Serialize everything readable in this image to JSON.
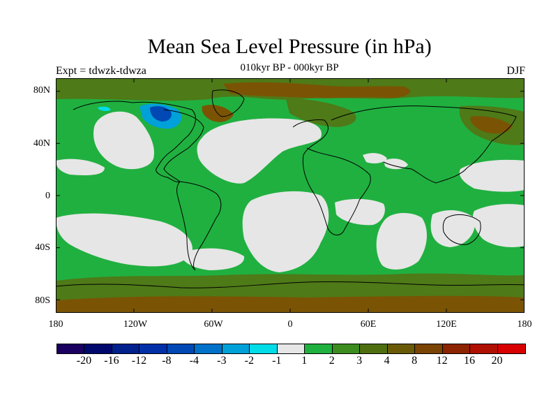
{
  "title": "Mean Sea Level Pressure (in hPa)",
  "subtitle": "010kyr BP - 000kyr BP",
  "experiment": "Expt = tdwzk-tdwza",
  "season": "DJF",
  "lat_labels": [
    "80N",
    "40N",
    "0",
    "40S",
    "80S"
  ],
  "lon_labels": [
    "180",
    "120W",
    "60W",
    "0",
    "60E",
    "120E",
    "180"
  ],
  "colorbar": {
    "colors": [
      "#1a0060",
      "#00086e",
      "#00208c",
      "#0030a8",
      "#0048b4",
      "#0070c8",
      "#00a0d8",
      "#00dce8",
      "#e6e6e6",
      "#20b040",
      "#3c8c20",
      "#4e6e10",
      "#6a5a08",
      "#7a4404",
      "#8c2400",
      "#b01000",
      "#d80000"
    ],
    "labels": [
      "-20",
      "-16",
      "-12",
      "-8",
      "-4",
      "-3",
      "-2",
      "-1",
      "1",
      "2",
      "3",
      "4",
      "8",
      "12",
      "16",
      "20"
    ]
  },
  "map": {
    "ocean_color": "#e6e6e6",
    "positive_small_color": "#20b040",
    "positive_mid_color": "#4e7a18",
    "positive_high_color": "#7a5404",
    "negative_color": "#0070c8",
    "negative_strong_color": "#0048b4"
  }
}
